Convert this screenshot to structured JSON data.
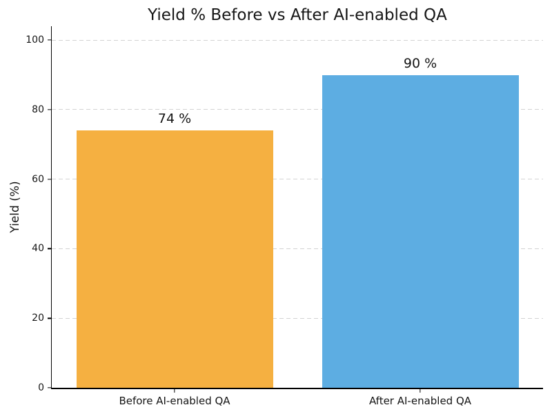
{
  "chart_data": {
    "type": "bar",
    "title": "Yield % Before vs After AI-enabled QA",
    "xlabel": "",
    "ylabel": "Yield (%)",
    "categories": [
      "Before AI-enabled QA",
      "After AI-enabled QA"
    ],
    "values": [
      74,
      90
    ],
    "bar_labels": [
      "74 %",
      "90 %"
    ],
    "bar_colors": [
      "#F5B041",
      "#5DADE2"
    ],
    "yticks": [
      0,
      20,
      40,
      60,
      80,
      100
    ],
    "ylim": [
      0,
      104
    ],
    "grid": "horizontal-dashed",
    "legend": "none",
    "bar_width_fraction": 0.8
  },
  "colors": {
    "background": "#ffffff",
    "grid": "#d2d2d2",
    "axis": "#000000",
    "text": "#151515"
  }
}
